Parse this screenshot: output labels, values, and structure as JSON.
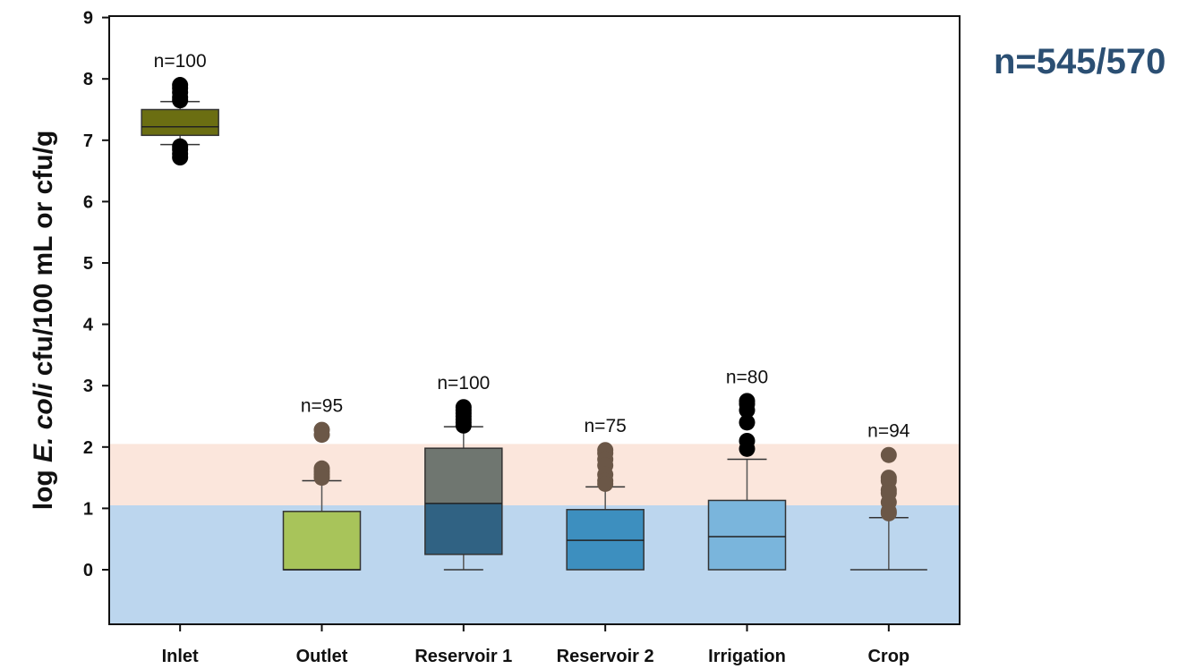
{
  "total_label": "n=545/570",
  "chart_data": {
    "type": "box",
    "title": "",
    "xlabel": "",
    "ylabel": {
      "prefix": "log ",
      "italic": "E. coli",
      "suffix": " cfu/100 mL or cfu/g"
    },
    "ylim": [
      -0.9,
      9
    ],
    "yticks": [
      0,
      1,
      2,
      3,
      4,
      5,
      6,
      7,
      8,
      9
    ],
    "grid": false,
    "bands": [
      {
        "from": -0.9,
        "to": 1.05,
        "color": "#bcd6ee"
      },
      {
        "from": 1.05,
        "to": 2.05,
        "color": "#fbe6dc"
      }
    ],
    "categories": [
      "Inlet",
      "Outlet",
      "Reservoir 1",
      "Reservoir 2",
      "Irrigation",
      "Crop"
    ],
    "boxes": [
      {
        "category": "Inlet",
        "n_label": "n=100",
        "min": 6.93,
        "q1": 7.08,
        "median": 7.22,
        "q3": 7.5,
        "max": 7.63,
        "outliers": [
          7.9,
          7.85,
          7.78,
          7.7,
          7.65,
          6.9,
          6.85,
          6.78,
          6.72
        ],
        "color": "#6b6e12",
        "outlier_color": "#000000"
      },
      {
        "category": "Outlet",
        "n_label": "n=95",
        "min": 0,
        "q1": 0,
        "median": 0,
        "q3": 0.95,
        "max": 1.45,
        "outliers": [
          2.28,
          2.2,
          1.65,
          1.6,
          1.55,
          1.5
        ],
        "color": "#a8c45a",
        "outlier_color": "#6b5747"
      },
      {
        "category": "Reservoir 1",
        "n_label": "n=100",
        "min": 0,
        "q1": 0.25,
        "median": 1.08,
        "q3": 1.98,
        "max": 2.33,
        "outliers": [
          2.65,
          2.6,
          2.55,
          2.5,
          2.45,
          2.4,
          2.35
        ],
        "color": "#306283",
        "color_upper": "#6f7670",
        "outlier_color": "#000000"
      },
      {
        "category": "Reservoir 2",
        "n_label": "n=75",
        "min": 0,
        "q1": 0,
        "median": 0.48,
        "q3": 0.98,
        "max": 1.35,
        "outliers": [
          1.95,
          1.9,
          1.8,
          1.7,
          1.55,
          1.45,
          1.4
        ],
        "color": "#3d8fbf",
        "outlier_color": "#6b5747"
      },
      {
        "category": "Irrigation",
        "n_label": "n=80",
        "min": 0,
        "q1": 0,
        "median": 0.54,
        "q3": 1.13,
        "max": 1.8,
        "outliers": [
          2.75,
          2.7,
          2.6,
          2.4,
          2.1,
          1.97
        ],
        "color": "#7ab5dc",
        "outlier_color": "#000000"
      },
      {
        "category": "Crop",
        "n_label": "n=94",
        "min": 0,
        "q1": 0,
        "median": 0,
        "q3": 0,
        "max": 0.85,
        "outliers": [
          1.87,
          1.5,
          1.45,
          1.3,
          1.25,
          1.1,
          0.95,
          0.92
        ],
        "color": "#bcd6ee",
        "outlier_color": "#6b5747"
      }
    ]
  }
}
